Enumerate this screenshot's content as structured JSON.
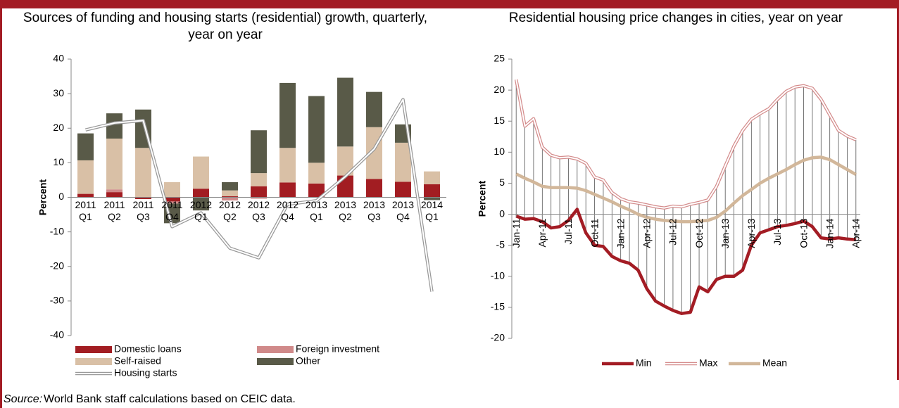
{
  "chart_data": [
    {
      "type": "bar",
      "stacked": true,
      "title": "Sources of funding and housing starts (residential) growth, quarterly, year on year",
      "y_label": "Percent",
      "categories": [
        [
          "2011",
          "Q1"
        ],
        [
          "2011",
          "Q2"
        ],
        [
          "2011",
          "Q3"
        ],
        [
          "2011",
          "Q4"
        ],
        [
          "2012",
          "Q1"
        ],
        [
          "2012",
          "Q2"
        ],
        [
          "2012",
          "Q3"
        ],
        [
          "2012",
          "Q4"
        ],
        [
          "2013",
          "Q1"
        ],
        [
          "2013",
          "Q2"
        ],
        [
          "2013",
          "Q3"
        ],
        [
          "2013",
          "Q4"
        ],
        [
          "2014",
          "Q1"
        ]
      ],
      "series": [
        {
          "name": "Domestic loans",
          "color": "#a21d22",
          "values": [
            1,
            1.5,
            -0.5,
            -1.2,
            2.5,
            0.3,
            3.2,
            4.3,
            4,
            6.3,
            5.3,
            4.5,
            3.8
          ]
        },
        {
          "name": "Foreign investment",
          "color": "#d08a8a",
          "values": [
            0,
            0.8,
            0,
            -0.6,
            0,
            -0.9,
            -0.4,
            0,
            0,
            0,
            0,
            0,
            0
          ]
        },
        {
          "name": "Self-raised",
          "color": "#d9c0a6",
          "values": [
            9.7,
            14.7,
            14.3,
            4.4,
            9.3,
            1.7,
            3.8,
            10,
            6,
            8.4,
            15,
            11.3,
            3.7
          ]
        },
        {
          "name": "Other",
          "color": "#595a48",
          "values": [
            7.8,
            7.3,
            11.1,
            -5.7,
            -3.8,
            2.4,
            12.4,
            18.8,
            19.3,
            19.9,
            10.2,
            5.3,
            -0.8
          ]
        },
        {
          "name": "Housing starts",
          "type": "line",
          "style": "double",
          "color": "#999999",
          "values": [
            19.5,
            21.5,
            22.2,
            -8.5,
            -4.5,
            -14.7,
            -17.5,
            -2,
            -1,
            6,
            14,
            28.3,
            -27.3
          ]
        }
      ],
      "ylim": [
        -40,
        40
      ],
      "yticks": [
        -40,
        -30,
        -20,
        -10,
        0,
        10,
        20,
        30,
        40
      ],
      "grid": false,
      "legend": "bottom"
    },
    {
      "type": "line",
      "high_low_lines": true,
      "title": "Residential housing price changes in cities, year on year",
      "y_label": "Percent",
      "categories": [
        "Jan-11",
        null,
        null,
        "Apr-11",
        null,
        null,
        "Jul-11",
        null,
        null,
        "Oct-11",
        null,
        null,
        "Jan-12",
        null,
        null,
        "Apr-12",
        null,
        null,
        "Jul-12",
        null,
        null,
        "Oct-12",
        null,
        null,
        "Jan-13",
        null,
        null,
        "Apr-13",
        null,
        null,
        "Jul-13",
        null,
        null,
        "Oct-13",
        null,
        null,
        "Jan-14",
        null,
        null,
        "Apr-14"
      ],
      "series": [
        {
          "name": "Min",
          "style": "thick",
          "color": "#a31c24",
          "values": [
            -0.3,
            -0.8,
            -0.7,
            -1.2,
            -2.2,
            -2,
            -1,
            0.8,
            -3,
            -5,
            -5.2,
            -6.8,
            -7.5,
            -7.9,
            -9,
            -12,
            -14,
            -14.8,
            -15.5,
            -16,
            -15.8,
            -11.7,
            -12.5,
            -10.5,
            -10,
            -10,
            -9,
            -5,
            -3,
            -2.5,
            -2,
            -1.8,
            -1.5,
            -1.1,
            -2,
            -3.8,
            -4,
            -3.8,
            -4,
            -4.1
          ]
        },
        {
          "name": "Max",
          "style": "double",
          "color": "#d48c8c",
          "values": [
            21.7,
            14.2,
            15.4,
            10.8,
            9.5,
            9.1,
            9.2,
            8.9,
            8.2,
            6,
            5.5,
            3.5,
            2.5,
            2,
            1.8,
            1.5,
            1.2,
            1,
            1.3,
            1.2,
            1.6,
            1.9,
            2.3,
            4.5,
            7.8,
            11,
            13.5,
            15.3,
            16.2,
            17,
            18.5,
            19.8,
            20.5,
            20.7,
            20.3,
            18.5,
            16,
            13.5,
            12.6,
            12
          ]
        },
        {
          "name": "Mean",
          "style": "thick",
          "color": "#d2b79a",
          "values": [
            6.5,
            5.8,
            5.2,
            4.5,
            4.3,
            4.3,
            4.3,
            4.2,
            3.8,
            3.2,
            2.6,
            2,
            1.3,
            0.7,
            0,
            -0.5,
            -0.8,
            -1,
            -1.1,
            -1.2,
            -1.2,
            -1.1,
            -1,
            -0.5,
            0.5,
            1.8,
            3,
            4,
            5,
            5.8,
            6.5,
            7.2,
            8,
            8.7,
            9.1,
            9.2,
            8.8,
            8,
            7.2,
            6.4
          ]
        }
      ],
      "ylim": [
        -20,
        25
      ],
      "yticks": [
        -20,
        -15,
        -10,
        -5,
        0,
        5,
        10,
        15,
        20,
        25
      ],
      "grid": false,
      "legend": "bottom"
    }
  ],
  "source_label": "Source:",
  "source_text": "World Bank staff calculations based on CEIC data."
}
